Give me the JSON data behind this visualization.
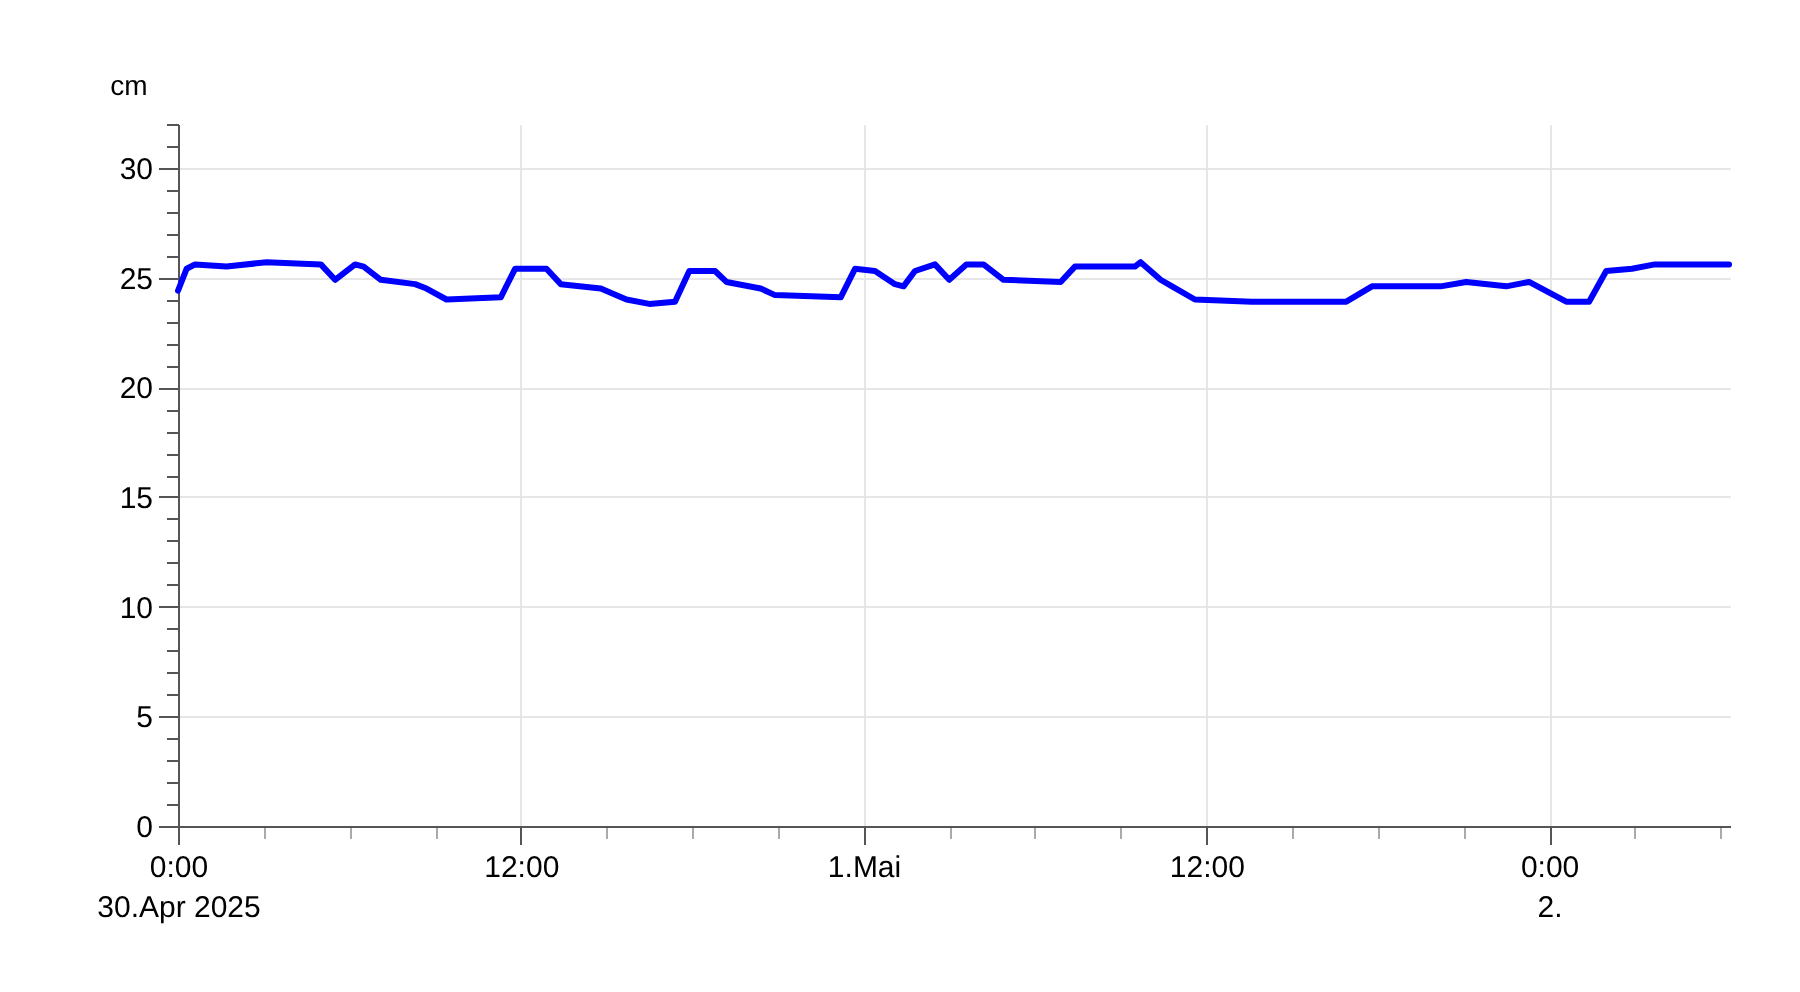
{
  "chart_data": {
    "type": "line",
    "ylabel": "cm",
    "xlim": [
      "2025-04-30T00:00",
      "2025-05-02T06:20"
    ],
    "ylim": [
      0,
      32
    ],
    "xticks": [
      {
        "value": "2025-04-30T00:00",
        "label": "0:00\n30.Apr 2025"
      },
      {
        "value": "2025-04-30T03:00",
        "label": null
      },
      {
        "value": "2025-04-30T06:00",
        "label": null
      },
      {
        "value": "2025-04-30T09:00",
        "label": null
      },
      {
        "value": "2025-04-30T12:00",
        "label": "12:00"
      },
      {
        "value": "2025-04-30T15:00",
        "label": null
      },
      {
        "value": "2025-04-30T18:00",
        "label": null
      },
      {
        "value": "2025-04-30T21:00",
        "label": null
      },
      {
        "value": "2025-05-01T00:00",
        "label": "1.Mai"
      },
      {
        "value": "2025-05-01T03:00",
        "label": null
      },
      {
        "value": "2025-05-01T06:00",
        "label": null
      },
      {
        "value": "2025-05-01T09:00",
        "label": null
      },
      {
        "value": "2025-05-01T12:00",
        "label": "12:00"
      },
      {
        "value": "2025-05-01T15:00",
        "label": null
      },
      {
        "value": "2025-05-01T18:00",
        "label": null
      },
      {
        "value": "2025-05-01T21:00",
        "label": null
      },
      {
        "value": "2025-05-02T00:00",
        "label": "0:00\n2."
      },
      {
        "value": "2025-05-02T03:00",
        "label": null
      },
      {
        "value": "2025-05-02T06:00",
        "label": null
      }
    ],
    "yticks": [
      0,
      {
        "value": 1,
        "label": null
      },
      {
        "value": 2,
        "label": null
      },
      {
        "value": 3,
        "label": null
      },
      {
        "value": 4,
        "label": null
      },
      5,
      {
        "value": 6,
        "label": null
      },
      {
        "value": 7,
        "label": null
      },
      {
        "value": 8,
        "label": null
      },
      {
        "value": 9,
        "label": null
      },
      10,
      {
        "value": 11,
        "label": null
      },
      {
        "value": 12,
        "label": null
      },
      {
        "value": 13,
        "label": null
      },
      {
        "value": 14,
        "label": null
      },
      15,
      {
        "value": 16,
        "label": null
      },
      {
        "value": 17,
        "label": null
      },
      {
        "value": 18,
        "label": null
      },
      {
        "value": 19,
        "label": null
      },
      20,
      {
        "value": 21,
        "label": null
      },
      {
        "value": 22,
        "label": null
      },
      {
        "value": 23,
        "label": null
      },
      {
        "value": 24,
        "label": null
      },
      25,
      {
        "value": 26,
        "label": null
      },
      {
        "value": 27,
        "label": null
      },
      {
        "value": 28,
        "label": null
      },
      {
        "value": 29,
        "label": null
      },
      30,
      {
        "value": 31,
        "label": null
      },
      {
        "value": 32,
        "label": null
      }
    ],
    "grid": true,
    "x": [
      "2025-04-30T00:00",
      "2025-04-30T00:18",
      "2025-04-30T00:36",
      "2025-04-30T01:42",
      "2025-04-30T03:06",
      "2025-04-30T05:00",
      "2025-04-30T05:30",
      "2025-04-30T06:12",
      "2025-04-30T06:30",
      "2025-04-30T07:06",
      "2025-04-30T08:18",
      "2025-04-30T08:42",
      "2025-04-30T09:24",
      "2025-04-30T11:18",
      "2025-04-30T11:48",
      "2025-04-30T12:54",
      "2025-04-30T13:24",
      "2025-04-30T14:48",
      "2025-04-30T15:42",
      "2025-04-30T16:30",
      "2025-04-30T17:24",
      "2025-04-30T17:54",
      "2025-04-30T18:48",
      "2025-04-30T19:12",
      "2025-04-30T20:24",
      "2025-04-30T20:54",
      "2025-04-30T23:12",
      "2025-04-30T23:42",
      "2025-05-01T00:24",
      "2025-05-01T01:06",
      "2025-05-01T01:24",
      "2025-05-01T01:48",
      "2025-05-01T02:30",
      "2025-05-01T03:00",
      "2025-05-01T03:36",
      "2025-05-01T04:12",
      "2025-05-01T04:54",
      "2025-05-01T06:54",
      "2025-05-01T07:24",
      "2025-05-01T09:30",
      "2025-05-01T09:42",
      "2025-05-01T10:24",
      "2025-05-01T10:48",
      "2025-05-01T11:36",
      "2025-05-01T13:36",
      "2025-05-01T16:54",
      "2025-05-01T17:48",
      "2025-05-01T19:00",
      "2025-05-01T20:12",
      "2025-05-01T21:06",
      "2025-05-01T22:30",
      "2025-05-01T23:18",
      "2025-05-02T00:36",
      "2025-05-02T01:24",
      "2025-05-02T02:00",
      "2025-05-02T02:54",
      "2025-05-02T03:42",
      "2025-05-02T06:18"
    ],
    "series": [
      {
        "color": "#0000ff",
        "values": [
          24.4,
          25.4,
          25.6,
          25.5,
          25.7,
          25.6,
          24.9,
          25.6,
          25.5,
          24.9,
          24.7,
          24.5,
          24.0,
          24.1,
          25.4,
          25.4,
          24.7,
          24.5,
          24.0,
          23.8,
          23.9,
          25.3,
          25.3,
          24.8,
          24.5,
          24.2,
          24.1,
          25.4,
          25.3,
          24.7,
          24.6,
          25.3,
          25.6,
          24.9,
          25.6,
          25.6,
          24.9,
          24.8,
          25.5,
          25.5,
          25.7,
          24.9,
          24.6,
          24.0,
          23.9,
          23.9,
          24.6,
          24.6,
          24.6,
          24.8,
          24.6,
          24.8,
          23.9,
          23.9,
          25.3,
          25.4,
          25.6,
          25.6
        ]
      }
    ]
  }
}
